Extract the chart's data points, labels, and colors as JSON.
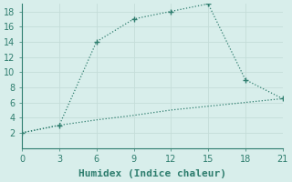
{
  "xlabel": "Humidex (Indice chaleur)",
  "line1_x": [
    0,
    3,
    6,
    9,
    12,
    15,
    18,
    21
  ],
  "line1_y": [
    2,
    3,
    14,
    17,
    18,
    19,
    9,
    6.5
  ],
  "line2_x": [
    0,
    3,
    6,
    9,
    12,
    15,
    18,
    21
  ],
  "line2_y": [
    2,
    3,
    3.7,
    4.3,
    5.0,
    5.5,
    6.0,
    6.5
  ],
  "color": "#2e7d6e",
  "bg_color": "#d8eeeb",
  "grid_color_major": "#c4ddd9",
  "grid_color_minor": "#daeae7",
  "xlim": [
    0,
    21
  ],
  "ylim": [
    0,
    19
  ],
  "xticks": [
    0,
    3,
    6,
    9,
    12,
    15,
    18,
    21
  ],
  "yticks": [
    2,
    4,
    6,
    8,
    10,
    12,
    14,
    16,
    18
  ],
  "marker": "+",
  "markersize": 4,
  "linewidth": 0.9,
  "xlabel_fontsize": 8,
  "tick_fontsize": 7
}
